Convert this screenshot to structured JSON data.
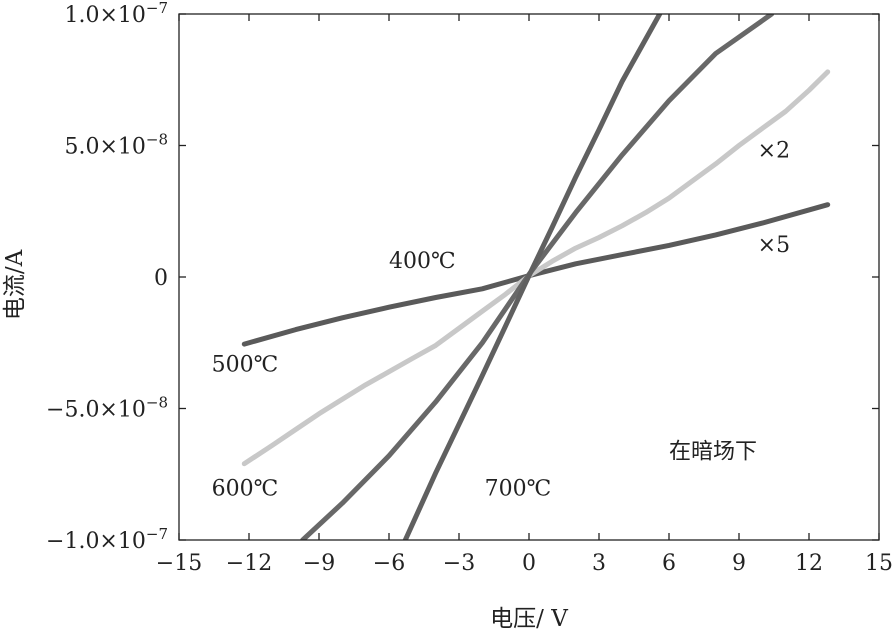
{
  "chart_data": {
    "type": "line",
    "title": "",
    "xlabel": "电压/ V",
    "ylabel": "电流/A",
    "xlim": [
      -15,
      15
    ],
    "ylim": [
      -1e-07,
      1e-07
    ],
    "x_ticks": [
      -15,
      -12,
      -9,
      -6,
      -3,
      0,
      3,
      6,
      9,
      12,
      15
    ],
    "x_tick_labels": [
      "−15",
      "−12",
      "−9",
      "−6",
      "−3",
      "0",
      "3",
      "6",
      "9",
      "12",
      "15"
    ],
    "y_ticks": [
      1e-07,
      5e-08,
      0,
      -5e-08,
      -1e-07
    ],
    "y_tick_labels": [
      {
        "mantissa": "1.0×10",
        "exp": "−7"
      },
      {
        "mantissa": "5.0×10",
        "exp": "−8"
      },
      {
        "mantissa": "0",
        "exp": ""
      },
      {
        "mantissa": "−5.0×10",
        "exp": "−8"
      },
      {
        "mantissa": "−1.0×10",
        "exp": "−7"
      }
    ],
    "grid": false,
    "series": [
      {
        "color": "#5a5a5a",
        "x": [
          -12.2,
          -10,
          -8,
          -6,
          -4,
          -2,
          0,
          2,
          4,
          6,
          8,
          10,
          12.8
        ],
        "y": [
          -2.55e-08,
          -2e-08,
          -1.55e-08,
          -1.15e-08,
          -7.8e-09,
          -4.5e-09,
          5e-10,
          5e-09,
          8.5e-09,
          1.2e-08,
          1.6e-08,
          2.05e-08,
          2.75e-08
        ]
      },
      {
        "color": "#c8c8c8",
        "x": [
          -12.2,
          -11,
          -10,
          -9,
          -8,
          -7,
          -6,
          -5,
          -4,
          -3,
          -2,
          -1,
          0,
          1,
          2,
          3,
          4,
          5,
          6,
          7,
          8,
          9,
          10,
          11,
          12,
          12.8
        ],
        "y": [
          -7.1e-08,
          -6.4e-08,
          -5.8e-08,
          -5.2e-08,
          -4.65e-08,
          -4.1e-08,
          -3.6e-08,
          -3.1e-08,
          -2.6e-08,
          -1.95e-08,
          -1.3e-08,
          -6.5e-09,
          5e-10,
          6e-09,
          1.1e-08,
          1.5e-08,
          1.95e-08,
          2.45e-08,
          3e-08,
          3.65e-08,
          4.3e-08,
          5e-08,
          5.65e-08,
          6.3e-08,
          7.1e-08,
          7.8e-08
        ]
      },
      {
        "color": "#686868",
        "x": [
          -9.7,
          -8,
          -6,
          -4,
          -2,
          0,
          2,
          4,
          6,
          8,
          10.4
        ],
        "y": [
          -1e-07,
          -8.6e-08,
          -6.8e-08,
          -4.75e-08,
          -2.5e-08,
          1e-09,
          2.45e-08,
          4.65e-08,
          6.7e-08,
          8.5e-08,
          1e-07
        ]
      },
      {
        "color": "#606060",
        "x": [
          -5.3,
          -4,
          -3,
          -2,
          -1,
          0,
          1,
          2,
          3,
          4,
          5.6
        ],
        "y": [
          -1e-07,
          -7.45e-08,
          -5.6e-08,
          -3.75e-08,
          -1.85e-08,
          5e-10,
          1.9e-08,
          3.8e-08,
          5.6e-08,
          7.45e-08,
          1e-07
        ]
      }
    ],
    "annotations": [
      {
        "text": "400℃",
        "x": -6.0,
        "y": 3.5e-09,
        "anchor": "start"
      },
      {
        "text": "500℃",
        "x": -13.6,
        "y": -3.6e-08,
        "anchor": "start"
      },
      {
        "text": "600℃",
        "x": -13.6,
        "y": -8.3e-08,
        "anchor": "start"
      },
      {
        "text": "700℃",
        "x": -1.9,
        "y": -8.3e-08,
        "anchor": "start"
      },
      {
        "text": "×2",
        "x": 9.8,
        "y": 4.55e-08,
        "anchor": "start"
      },
      {
        "text": "×5",
        "x": 9.8,
        "y": 9.5e-09,
        "anchor": "start"
      },
      {
        "text": "在暗场下",
        "x": 6.0,
        "y": -6.9e-08,
        "anchor": "start"
      }
    ]
  }
}
